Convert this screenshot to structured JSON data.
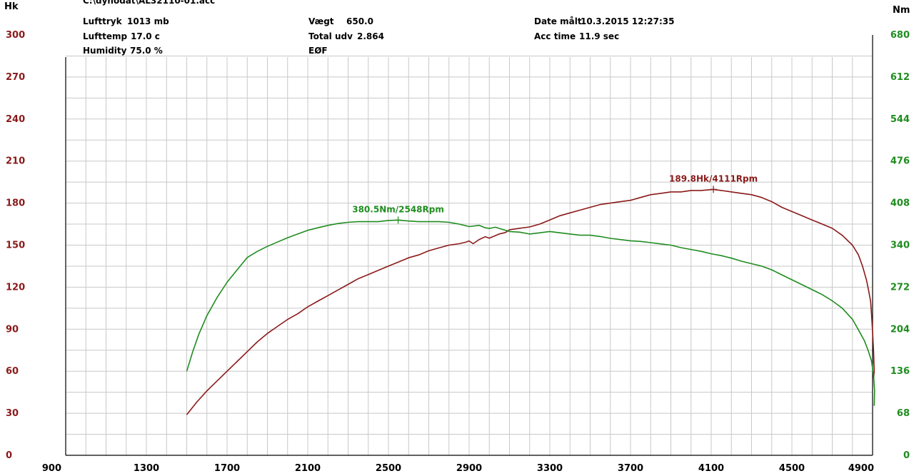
{
  "header": {
    "file_path": "C:\\dynodat\\AL32110-01.acc",
    "lufttryk_label": "Lufttryk",
    "lufttryk_value": "1013 mb",
    "lufttemp_label": "Lufttemp",
    "lufttemp_value": "17.0 c",
    "humidity_label": "Humidity",
    "humidity_value": "75.0 %",
    "vaegt_label": "Vægt",
    "vaegt_value": "650.0",
    "total_udv_label": "Total udv",
    "total_udv_value": "2.864",
    "eof_label": "EØF",
    "date_label": "Date målt",
    "date_value": "10.3.2015 12:27:35",
    "acc_time_label": "Acc time",
    "acc_time_value": "11.9 sec"
  },
  "colors": {
    "power": "#8b1a1a",
    "torque": "#1f8c1f",
    "grid": "#c8c8c8",
    "axis": "#000000"
  },
  "chart_data": {
    "type": "line",
    "title": "",
    "xlabel": "",
    "ylabel_left": "Hk",
    "ylabel_right": "Nm",
    "xlim": [
      900,
      4900
    ],
    "ylim_left": [
      0,
      300
    ],
    "ylim_right": [
      0,
      680
    ],
    "x_ticks": [
      "900",
      "1300",
      "1700",
      "2100",
      "2500",
      "2900",
      "3300",
      "3700",
      "4100",
      "4500",
      "4900"
    ],
    "y_ticks_left": [
      "0",
      "30",
      "60",
      "90",
      "120",
      "150",
      "180",
      "210",
      "240",
      "270",
      "300"
    ],
    "y_ticks_right": [
      "0",
      "68",
      "136",
      "204",
      "272",
      "340",
      "408",
      "476",
      "544",
      "612",
      "680"
    ],
    "grid": true,
    "series": [
      {
        "name": "Hk",
        "axis": "left",
        "color": "#8b1a1a",
        "x": [
          1500,
          1550,
          1600,
          1650,
          1700,
          1750,
          1800,
          1850,
          1900,
          1950,
          2000,
          2050,
          2100,
          2150,
          2200,
          2250,
          2300,
          2350,
          2400,
          2450,
          2500,
          2550,
          2600,
          2650,
          2700,
          2750,
          2800,
          2850,
          2880,
          2900,
          2920,
          2950,
          2980,
          3000,
          3050,
          3080,
          3100,
          3150,
          3200,
          3250,
          3300,
          3350,
          3400,
          3450,
          3500,
          3550,
          3600,
          3650,
          3700,
          3750,
          3800,
          3850,
          3900,
          3950,
          4000,
          4050,
          4111,
          4150,
          4200,
          4250,
          4300,
          4350,
          4400,
          4450,
          4500,
          4550,
          4600,
          4650,
          4700,
          4750,
          4800,
          4830,
          4850,
          4870,
          4880,
          4890,
          4895,
          4900,
          4905,
          4908,
          4905
        ],
        "y": [
          29,
          38,
          46,
          53,
          60,
          67,
          74,
          81,
          87,
          92,
          97,
          101,
          106,
          110,
          114,
          118,
          122,
          126,
          129,
          132,
          135,
          138,
          141,
          143,
          146,
          148,
          150,
          151,
          152,
          153,
          151,
          154,
          156,
          155,
          158,
          159,
          161,
          162,
          163,
          165,
          168,
          171,
          173,
          175,
          177,
          179,
          180,
          181,
          182,
          184,
          186,
          187,
          188,
          188,
          189,
          189,
          189.8,
          189,
          188,
          187,
          186,
          184,
          181,
          177,
          174,
          171,
          168,
          165,
          162,
          157,
          150,
          143,
          135,
          125,
          118,
          110,
          100,
          88,
          74,
          60,
          55
        ]
      },
      {
        "name": "Nm",
        "axis": "right",
        "color": "#1f8c1f",
        "x": [
          1500,
          1530,
          1560,
          1600,
          1650,
          1700,
          1750,
          1800,
          1850,
          1900,
          1950,
          2000,
          2050,
          2100,
          2150,
          2200,
          2250,
          2300,
          2350,
          2400,
          2450,
          2500,
          2548,
          2600,
          2650,
          2700,
          2750,
          2800,
          2850,
          2900,
          2950,
          2980,
          3000,
          3030,
          3060,
          3080,
          3100,
          3150,
          3200,
          3250,
          3300,
          3350,
          3400,
          3450,
          3500,
          3550,
          3600,
          3650,
          3700,
          3750,
          3800,
          3850,
          3900,
          3950,
          4000,
          4050,
          4100,
          4150,
          4200,
          4250,
          4300,
          4350,
          4400,
          4450,
          4500,
          4550,
          4600,
          4650,
          4700,
          4750,
          4800,
          4830,
          4860,
          4880,
          4895,
          4905,
          4910,
          4908
        ],
        "y": [
          136,
          168,
          196,
          226,
          255,
          280,
          300,
          320,
          330,
          338,
          345,
          352,
          358,
          364,
          368,
          372,
          375,
          377,
          378,
          378,
          378,
          380,
          380.5,
          379,
          378,
          378,
          378,
          377,
          374,
          370,
          372,
          368,
          367,
          369,
          366,
          364,
          362,
          361,
          358,
          360,
          362,
          360,
          358,
          356,
          356,
          354,
          351,
          349,
          347,
          346,
          344,
          342,
          340,
          336,
          333,
          330,
          326,
          323,
          319,
          314,
          310,
          306,
          300,
          292,
          284,
          276,
          268,
          260,
          250,
          238,
          220,
          203,
          185,
          168,
          152,
          128,
          105,
          80
        ]
      }
    ],
    "annotations": [
      {
        "text": "189.8Hk/4111Rpm",
        "series": "Hk",
        "x": 4111,
        "y": 189.8
      },
      {
        "text": "380.5Nm/2548Rpm",
        "series": "Nm",
        "x": 2548,
        "y": 380.5
      }
    ]
  }
}
